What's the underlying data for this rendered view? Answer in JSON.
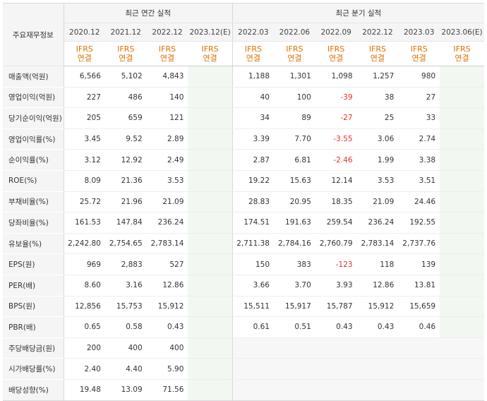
{
  "header": {
    "row_label": "주요재무정보",
    "annual_title": "최근 연간 실적",
    "quarter_title": "최근 분기 실적",
    "annual_periods": [
      "2020.12",
      "2021.12",
      "2022.12",
      "2023.12(E)"
    ],
    "quarter_periods": [
      "2022.03",
      "2022.06",
      "2022.09",
      "2022.12",
      "2023.03",
      "2023.06(E)"
    ],
    "ifrs_line1": "IFRS",
    "ifrs_line2": "연결"
  },
  "rows": [
    {
      "label": "매출액(억원)",
      "annual": [
        "6,566",
        "5,102",
        "4,843",
        ""
      ],
      "quarter": [
        "1,188",
        "1,301",
        "1,098",
        "1,257",
        "980",
        ""
      ]
    },
    {
      "label": "영업이익(억원)",
      "annual": [
        "227",
        "486",
        "140",
        ""
      ],
      "quarter": [
        "40",
        "100",
        "-39",
        "38",
        "27",
        ""
      ]
    },
    {
      "label": "당기순이익(억원)",
      "annual": [
        "205",
        "659",
        "121",
        ""
      ],
      "quarter": [
        "34",
        "89",
        "-27",
        "25",
        "33",
        ""
      ]
    },
    {
      "label": "영업이익률(%)",
      "annual": [
        "3.45",
        "9.52",
        "2.89",
        ""
      ],
      "quarter": [
        "3.39",
        "7.70",
        "-3.55",
        "3.06",
        "2.74",
        ""
      ]
    },
    {
      "label": "순이익률(%)",
      "annual": [
        "3.12",
        "12.92",
        "2.49",
        ""
      ],
      "quarter": [
        "2.87",
        "6.81",
        "-2.46",
        "1.99",
        "3.38",
        ""
      ]
    },
    {
      "label": "ROE(%)",
      "annual": [
        "8.09",
        "21.36",
        "3.53",
        ""
      ],
      "quarter": [
        "19.22",
        "15.63",
        "12.14",
        "3.53",
        "3.51",
        ""
      ]
    },
    {
      "label": "부채비율(%)",
      "annual": [
        "25.72",
        "21.96",
        "21.09",
        ""
      ],
      "quarter": [
        "28.83",
        "20.95",
        "18.35",
        "21.09",
        "24.46",
        ""
      ]
    },
    {
      "label": "당좌비율(%)",
      "annual": [
        "161.53",
        "147.84",
        "236.24",
        ""
      ],
      "quarter": [
        "174.51",
        "191.63",
        "259.54",
        "236.24",
        "192.55",
        ""
      ]
    },
    {
      "label": "유보율(%)",
      "annual": [
        "2,242.80",
        "2,754.65",
        "2,783.14",
        ""
      ],
      "quarter": [
        "2,711.38",
        "2,784.16",
        "2,760.79",
        "2,783.14",
        "2,737.76",
        ""
      ]
    },
    {
      "label": "EPS(원)",
      "annual": [
        "969",
        "2,883",
        "527",
        ""
      ],
      "quarter": [
        "150",
        "383",
        "-123",
        "118",
        "139",
        ""
      ]
    },
    {
      "label": "PER(배)",
      "annual": [
        "8.60",
        "3.16",
        "12.86",
        ""
      ],
      "quarter": [
        "3.66",
        "3.70",
        "3.93",
        "12.86",
        "13.81",
        ""
      ]
    },
    {
      "label": "BPS(원)",
      "annual": [
        "12,856",
        "15,753",
        "15,912",
        ""
      ],
      "quarter": [
        "15,511",
        "15,917",
        "15,787",
        "15,912",
        "15,659",
        ""
      ]
    },
    {
      "label": "PBR(배)",
      "annual": [
        "0.65",
        "0.58",
        "0.43",
        ""
      ],
      "quarter": [
        "0.61",
        "0.51",
        "0.43",
        "0.43",
        "0.46",
        ""
      ]
    },
    {
      "label": "주당배당금(원)",
      "annual": [
        "200",
        "400",
        "400",
        ""
      ],
      "quarter": [
        "",
        "",
        "",
        "",
        "",
        ""
      ]
    },
    {
      "label": "시가배당률(%)",
      "annual": [
        "2.40",
        "4.40",
        "5.90",
        ""
      ],
      "quarter": [
        "",
        "",
        "",
        "",
        "",
        ""
      ]
    },
    {
      "label": "배당성향(%)",
      "annual": [
        "19.48",
        "13.09",
        "71.56",
        ""
      ],
      "quarter": [
        "",
        "",
        "",
        "",
        "",
        ""
      ]
    }
  ],
  "colors": {
    "negative": "#e8322b",
    "ifrs": "#e07000",
    "estimate_bg": "#f2f7f2",
    "label_bg": "#f5f5f5"
  }
}
